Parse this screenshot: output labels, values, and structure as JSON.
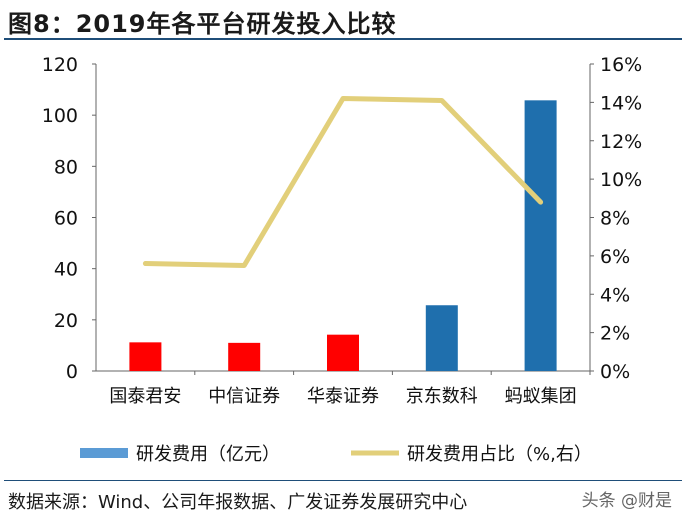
{
  "figure_title": "图8：2019年各平台研发投入比较",
  "source_text": "数据来源：Wind、公司年报数据、广发证券发展研究中心",
  "watermark_text": "头条 @财是",
  "colors": {
    "bar_blue": "#1f6fad",
    "bar_red": "#ff0000",
    "line_gold": "#e2cf7a",
    "legend_blue": "#5b9bd5",
    "rule": "#1f4e79"
  },
  "chart_data": {
    "type": "bar+line",
    "categories": [
      "国泰君安",
      "中信证券",
      "华泰证券",
      "京东数科",
      "蚂蚁集团"
    ],
    "series": [
      {
        "name": "研发费用（亿元）",
        "type": "bar",
        "axis": "left",
        "values": [
          11.2,
          11.0,
          14.2,
          25.7,
          105.8
        ],
        "bar_colors": [
          "#ff0000",
          "#ff0000",
          "#ff0000",
          "#1f6fad",
          "#1f6fad"
        ]
      },
      {
        "name": "研发费用占比（%,右）",
        "type": "line",
        "axis": "right",
        "values": [
          5.6,
          5.5,
          14.2,
          14.1,
          8.8
        ]
      }
    ],
    "y_left": {
      "min": 0,
      "max": 120,
      "ticks": [
        "0",
        "20",
        "40",
        "60",
        "80",
        "100",
        "120"
      ]
    },
    "y_right": {
      "min": 0,
      "max": 16,
      "ticks": [
        "0%",
        "2%",
        "4%",
        "6%",
        "8%",
        "10%",
        "12%",
        "14%",
        "16%"
      ]
    },
    "grid": false,
    "legend_position": "bottom"
  }
}
